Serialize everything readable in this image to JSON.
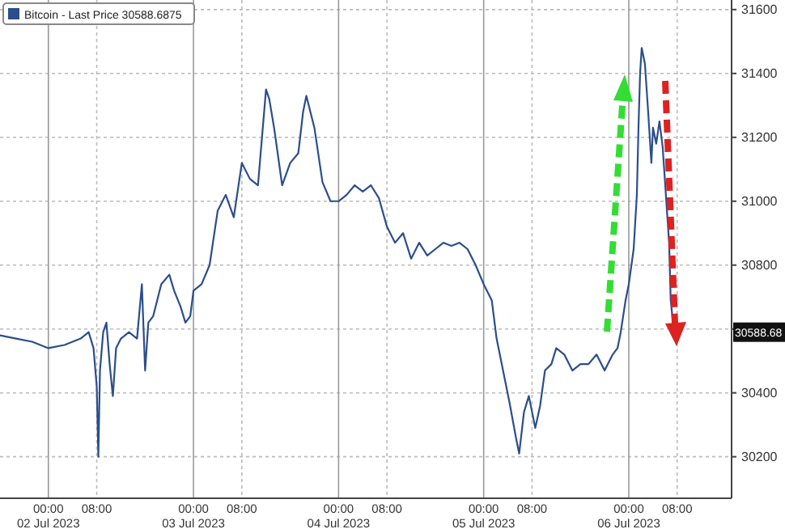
{
  "chart_data": {
    "type": "line",
    "legend": "top left",
    "grid": true,
    "xlim": [
      "2023-07-01T16:00",
      "2023-07-06T17:00"
    ],
    "xticks": [
      {
        "value": "2023-07-02T00:00",
        "label": "00:00\n02 Jul 2023"
      },
      {
        "value": "2023-07-02T08:00",
        "label": "08:00"
      },
      {
        "value": "2023-07-03T00:00",
        "label": "00:00\n03 Jul 2023"
      },
      {
        "value": "2023-07-03T08:00",
        "label": "08:00"
      },
      {
        "value": "2023-07-04T00:00",
        "label": "00:00\n04 Jul 2023"
      },
      {
        "value": "2023-07-04T08:00",
        "label": "08:00"
      },
      {
        "value": "2023-07-05T00:00",
        "label": "00:00\n05 Jul 2023"
      },
      {
        "value": "2023-07-05T08:00",
        "label": "08:00"
      },
      {
        "value": "2023-07-06T00:00",
        "label": "00:00\n06 Jul 2023"
      },
      {
        "value": "2023-07-06T08:00",
        "label": "08:00"
      }
    ],
    "ylim": [
      30070,
      31630
    ],
    "yticks": [
      30200,
      30400,
      {
        "value": 30600,
        "label": null
      },
      30800,
      31000,
      31200,
      31400,
      31600
    ],
    "annotations": [
      "30588.68"
    ],
    "series": [
      {
        "name": "Bitcoin - Last Price 30588.6875",
        "color": "#2b4e8c",
        "x": [
          "2023-07-01T16:00",
          "2023-07-01T18:40",
          "2023-07-01T21:20",
          "2023-07-02T00:00",
          "2023-07-02T02:40",
          "2023-07-02T05:20",
          "2023-07-02T06:40",
          "2023-07-02T07:28",
          "2023-07-02T08:00",
          "2023-07-02T08:16",
          "2023-07-02T08:32",
          "2023-07-02T09:04",
          "2023-07-02T09:36",
          "2023-07-02T10:08",
          "2023-07-02T10:40",
          "2023-07-02T11:12",
          "2023-07-02T12:00",
          "2023-07-02T13:20",
          "2023-07-02T14:40",
          "2023-07-02T15:28",
          "2023-07-02T16:00",
          "2023-07-02T16:32",
          "2023-07-02T17:20",
          "2023-07-02T18:40",
          "2023-07-02T20:00",
          "2023-07-02T20:48",
          "2023-07-02T21:52",
          "2023-07-02T22:40",
          "2023-07-02T23:28",
          "2023-07-03T00:00",
          "2023-07-03T01:20",
          "2023-07-03T02:40",
          "2023-07-03T04:00",
          "2023-07-03T05:20",
          "2023-07-03T06:40",
          "2023-07-03T08:00",
          "2023-07-03T09:20",
          "2023-07-03T10:40",
          "2023-07-03T11:12",
          "2023-07-03T12:00",
          "2023-07-03T12:32",
          "2023-07-03T13:20",
          "2023-07-03T14:40",
          "2023-07-03T16:00",
          "2023-07-03T17:20",
          "2023-07-03T18:08",
          "2023-07-03T18:40",
          "2023-07-03T20:00",
          "2023-07-03T21:20",
          "2023-07-03T22:40",
          "2023-07-04T00:00",
          "2023-07-04T01:20",
          "2023-07-04T02:40",
          "2023-07-04T04:00",
          "2023-07-04T05:20",
          "2023-07-04T06:40",
          "2023-07-04T08:00",
          "2023-07-04T09:20",
          "2023-07-04T10:40",
          "2023-07-04T12:00",
          "2023-07-04T13:20",
          "2023-07-04T14:40",
          "2023-07-04T16:00",
          "2023-07-04T17:20",
          "2023-07-04T18:40",
          "2023-07-04T20:00",
          "2023-07-04T21:20",
          "2023-07-04T22:40",
          "2023-07-05T00:00",
          "2023-07-05T01:20",
          "2023-07-05T02:08",
          "2023-07-05T03:12",
          "2023-07-05T04:16",
          "2023-07-05T05:20",
          "2023-07-05T05:52",
          "2023-07-05T06:40",
          "2023-07-05T07:28",
          "2023-07-05T08:32",
          "2023-07-05T09:20",
          "2023-07-05T10:08",
          "2023-07-05T11:12",
          "2023-07-05T12:00",
          "2023-07-05T13:20",
          "2023-07-05T14:40",
          "2023-07-05T16:00",
          "2023-07-05T17:20",
          "2023-07-05T18:40",
          "2023-07-05T20:00",
          "2023-07-05T21:20",
          "2023-07-05T22:08",
          "2023-07-05T22:40",
          "2023-07-05T23:28",
          "2023-07-06T00:00",
          "2023-07-06T00:48",
          "2023-07-06T01:20",
          "2023-07-06T01:36",
          "2023-07-06T01:52",
          "2023-07-06T02:08",
          "2023-07-06T02:40",
          "2023-07-06T03:12",
          "2023-07-06T03:44",
          "2023-07-06T04:00",
          "2023-07-06T04:32",
          "2023-07-06T05:04",
          "2023-07-06T05:36",
          "2023-07-06T06:08",
          "2023-07-06T06:40",
          "2023-07-06T06:56",
          "2023-07-06T07:28"
        ],
        "values": [
          30580,
          30570,
          30560,
          30540,
          30550,
          30570,
          30590,
          30540,
          30420,
          30200,
          30470,
          30590,
          30620,
          30490,
          30390,
          30540,
          30570,
          30590,
          30570,
          30740,
          30470,
          30620,
          30640,
          30740,
          30770,
          30720,
          30670,
          30620,
          30640,
          30720,
          30740,
          30800,
          30970,
          31020,
          30950,
          31120,
          31070,
          31050,
          31170,
          31350,
          31320,
          31230,
          31050,
          31120,
          31150,
          31280,
          31330,
          31230,
          31060,
          31000,
          31000,
          31020,
          31050,
          31030,
          31050,
          31010,
          30920,
          30870,
          30900,
          30820,
          30870,
          30830,
          30850,
          30870,
          30860,
          30870,
          30850,
          30800,
          30740,
          30690,
          30570,
          30470,
          30370,
          30260,
          30210,
          30340,
          30390,
          30290,
          30360,
          30470,
          30490,
          30540,
          30520,
          30470,
          30490,
          30490,
          30520,
          30470,
          30520,
          30540,
          30590,
          30690,
          30740,
          30850,
          31020,
          31230,
          31400,
          31480,
          31430,
          31280,
          31120,
          31230,
          31180,
          31250,
          31170,
          31020,
          30870,
          30690,
          30590
        ]
      }
    ]
  }
}
